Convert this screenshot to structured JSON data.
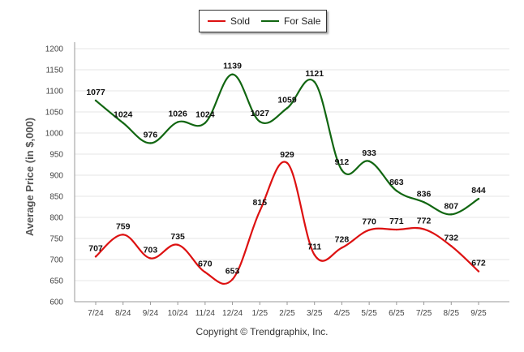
{
  "chart_data": {
    "type": "line",
    "ylabel": "Average Price (in $,000)",
    "ylim": [
      600,
      1200
    ],
    "yticks": [
      600,
      650,
      700,
      750,
      800,
      850,
      900,
      950,
      1000,
      1050,
      1100,
      1150,
      1200
    ],
    "grid": true,
    "legend_position": "top-center",
    "categories": [
      "7/24",
      "8/24",
      "9/24",
      "10/24",
      "11/24",
      "12/24",
      "1/25",
      "2/25",
      "3/25",
      "4/25",
      "5/25",
      "6/25",
      "7/25",
      "8/25",
      "9/25"
    ],
    "series": [
      {
        "name": "Sold",
        "color": "#dd1111",
        "values": [
          707,
          759,
          703,
          735,
          670,
          653,
          815,
          929,
          711,
          728,
          770,
          771,
          772,
          732,
          672
        ]
      },
      {
        "name": "For Sale",
        "color": "#116611",
        "values": [
          1077,
          1024,
          976,
          1026,
          1024,
          1139,
          1027,
          1059,
          1121,
          912,
          933,
          863,
          836,
          807,
          844
        ]
      }
    ]
  },
  "footer": {
    "copyright": "Copyright © Trendgraphix, Inc."
  }
}
